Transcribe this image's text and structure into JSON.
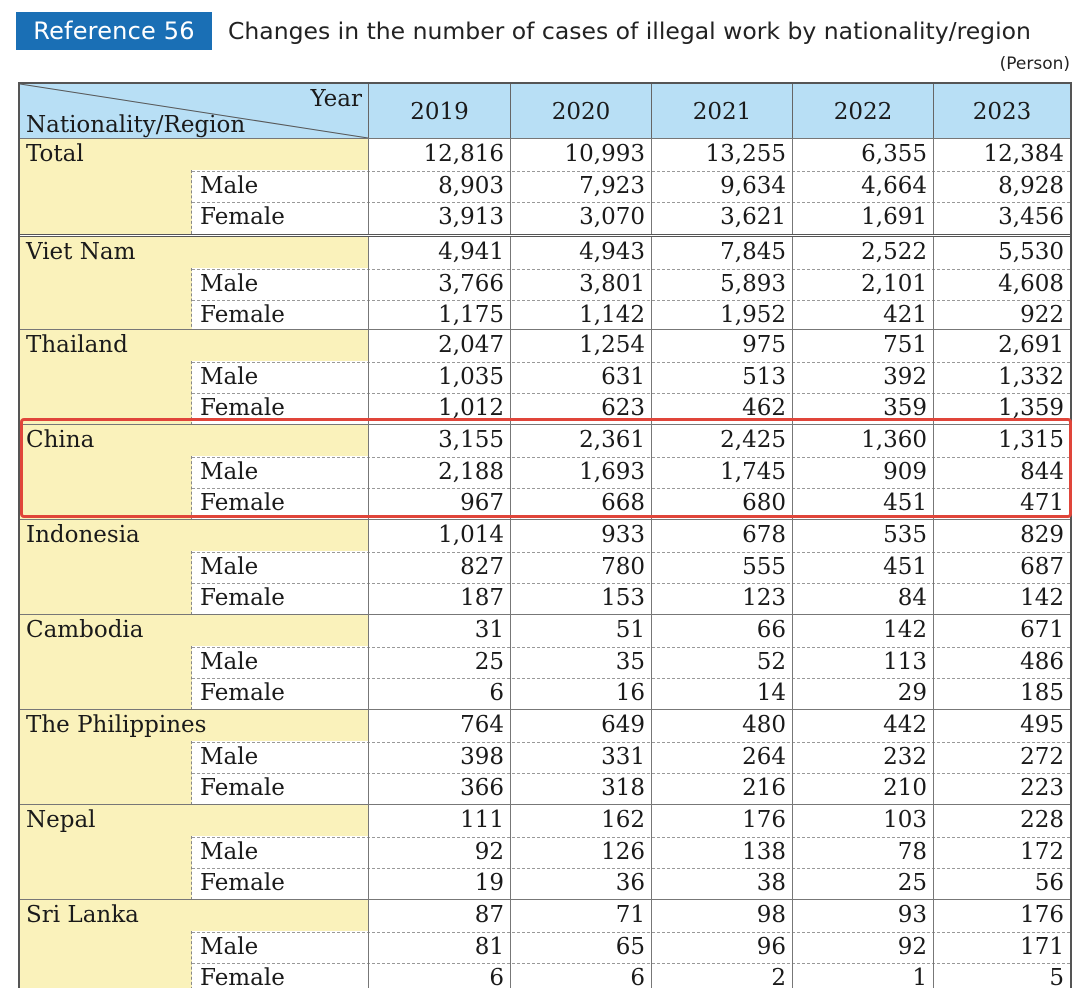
{
  "header": {
    "badge": "Reference 56",
    "title": "Changes in the number of cases of illegal work by nationality/region",
    "unit": "(Person)"
  },
  "table": {
    "corner_year": "Year",
    "corner_nationality": "Nationality/Region",
    "years": [
      "2019",
      "2020",
      "2021",
      "2022",
      "2023"
    ],
    "groups": [
      {
        "name": "Total",
        "rows": [
          {
            "label": "",
            "values": [
              "12,816",
              "10,993",
              "13,255",
              "6,355",
              "12,384"
            ]
          },
          {
            "label": "Male",
            "values": [
              "8,903",
              "7,923",
              "9,634",
              "4,664",
              "8,928"
            ]
          },
          {
            "label": "Female",
            "values": [
              "3,913",
              "3,070",
              "3,621",
              "1,691",
              "3,456"
            ]
          }
        ]
      },
      {
        "name": "Viet Nam",
        "rows": [
          {
            "label": "",
            "values": [
              "4,941",
              "4,943",
              "7,845",
              "2,522",
              "5,530"
            ]
          },
          {
            "label": "Male",
            "values": [
              "3,766",
              "3,801",
              "5,893",
              "2,101",
              "4,608"
            ]
          },
          {
            "label": "Female",
            "values": [
              "1,175",
              "1,142",
              "1,952",
              "421",
              "922"
            ]
          }
        ]
      },
      {
        "name": "Thailand",
        "rows": [
          {
            "label": "",
            "values": [
              "2,047",
              "1,254",
              "975",
              "751",
              "2,691"
            ]
          },
          {
            "label": "Male",
            "values": [
              "1,035",
              "631",
              "513",
              "392",
              "1,332"
            ]
          },
          {
            "label": "Female",
            "values": [
              "1,012",
              "623",
              "462",
              "359",
              "1,359"
            ]
          }
        ]
      },
      {
        "name": "China",
        "rows": [
          {
            "label": "",
            "values": [
              "3,155",
              "2,361",
              "2,425",
              "1,360",
              "1,315"
            ]
          },
          {
            "label": "Male",
            "values": [
              "2,188",
              "1,693",
              "1,745",
              "909",
              "844"
            ]
          },
          {
            "label": "Female",
            "values": [
              "967",
              "668",
              "680",
              "451",
              "471"
            ]
          }
        ]
      },
      {
        "name": "Indonesia",
        "rows": [
          {
            "label": "",
            "values": [
              "1,014",
              "933",
              "678",
              "535",
              "829"
            ]
          },
          {
            "label": "Male",
            "values": [
              "827",
              "780",
              "555",
              "451",
              "687"
            ]
          },
          {
            "label": "Female",
            "values": [
              "187",
              "153",
              "123",
              "84",
              "142"
            ]
          }
        ]
      },
      {
        "name": "Cambodia",
        "rows": [
          {
            "label": "",
            "values": [
              "31",
              "51",
              "66",
              "142",
              "671"
            ]
          },
          {
            "label": "Male",
            "values": [
              "25",
              "35",
              "52",
              "113",
              "486"
            ]
          },
          {
            "label": "Female",
            "values": [
              "6",
              "16",
              "14",
              "29",
              "185"
            ]
          }
        ]
      },
      {
        "name": "The Philippines",
        "rows": [
          {
            "label": "",
            "values": [
              "764",
              "649",
              "480",
              "442",
              "495"
            ]
          },
          {
            "label": "Male",
            "values": [
              "398",
              "331",
              "264",
              "232",
              "272"
            ]
          },
          {
            "label": "Female",
            "values": [
              "366",
              "318",
              "216",
              "210",
              "223"
            ]
          }
        ]
      },
      {
        "name": "Nepal",
        "rows": [
          {
            "label": "",
            "values": [
              "111",
              "162",
              "176",
              "103",
              "228"
            ]
          },
          {
            "label": "Male",
            "values": [
              "92",
              "126",
              "138",
              "78",
              "172"
            ]
          },
          {
            "label": "Female",
            "values": [
              "19",
              "36",
              "38",
              "25",
              "56"
            ]
          }
        ]
      },
      {
        "name": "Sri Lanka",
        "rows": [
          {
            "label": "",
            "values": [
              "87",
              "71",
              "98",
              "93",
              "176"
            ]
          },
          {
            "label": "Male",
            "values": [
              "81",
              "65",
              "96",
              "92",
              "171"
            ]
          },
          {
            "label": "Female",
            "values": [
              "6",
              "6",
              "2",
              "1",
              "5"
            ]
          }
        ]
      }
    ]
  },
  "highlight_color": "#e0453a"
}
